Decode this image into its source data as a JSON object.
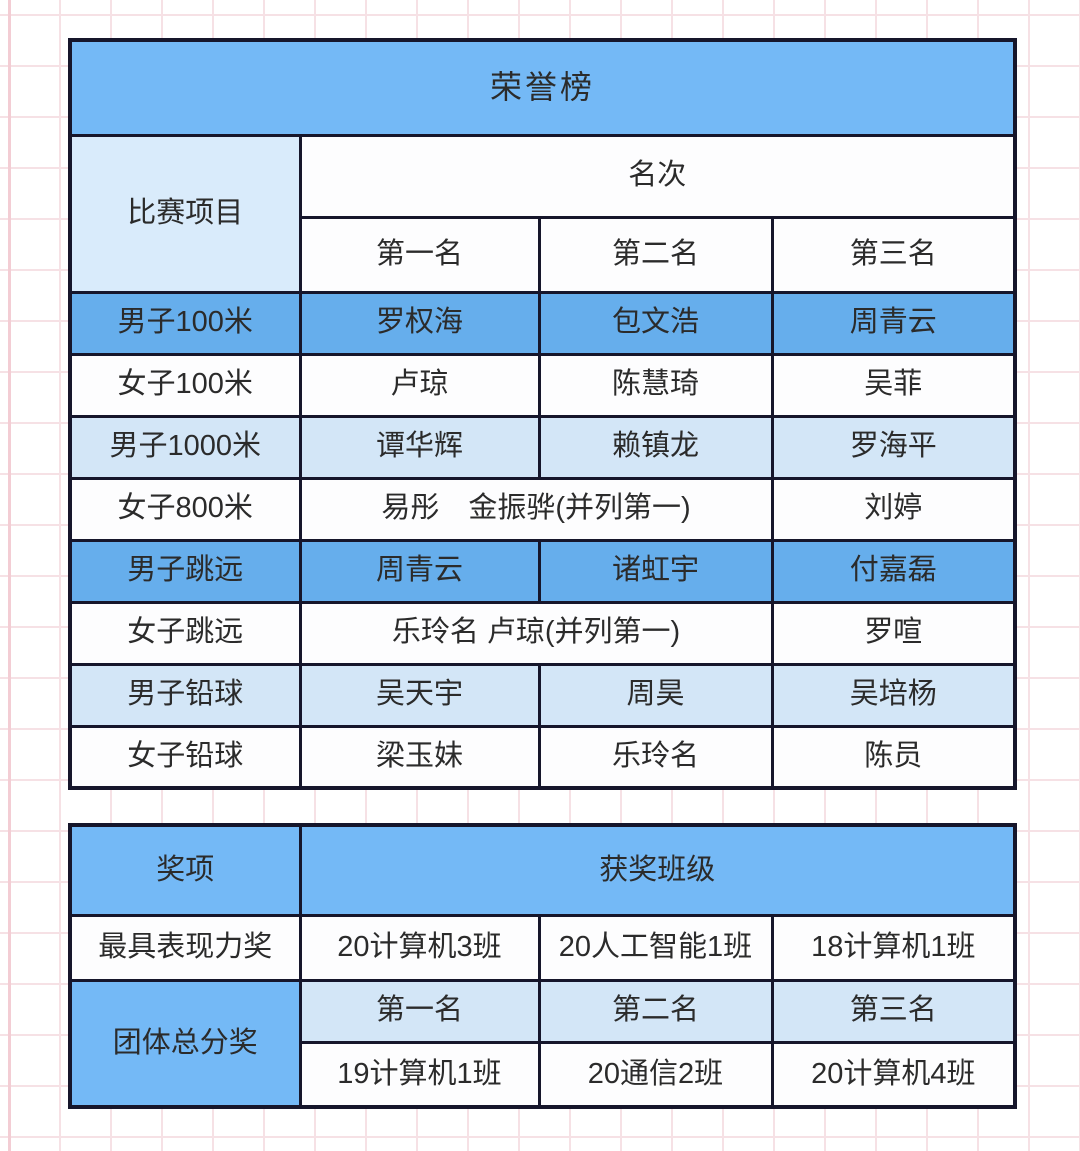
{
  "colors": {
    "header_blue": "#74b9f6",
    "row_blue": "#66aeec",
    "row_light": "#d3e6f7",
    "label_light": "#d9ebfb",
    "row_white": "#fdfdfe",
    "border": "#16162b",
    "text": "#2b2b2b",
    "grid_line": "#f6e1e5",
    "accent_line": "#f3cdd4"
  },
  "honor_table": {
    "title": "荣誉榜",
    "rows": [
      [
        {
          "text": "荣誉榜",
          "colspan": 4,
          "bg": "header",
          "name": "honor-table-title"
        }
      ],
      [
        {
          "text": "比赛项目",
          "rowspan": 2,
          "bg": "lightlabel",
          "name": "event-column-header"
        },
        {
          "text": "名次",
          "colspan": 3,
          "bg": "white",
          "name": "rank-group-header"
        }
      ],
      [
        {
          "text": "第一名",
          "bg": "white",
          "name": "first-place-header"
        },
        {
          "text": "第二名",
          "bg": "white",
          "name": "second-place-header"
        },
        {
          "text": "第三名",
          "bg": "white",
          "name": "third-place-header"
        }
      ],
      [
        {
          "text": "男子100米",
          "bg": "blue",
          "name": "event-label"
        },
        {
          "text": "罗权海",
          "bg": "blue",
          "name": "winner-name"
        },
        {
          "text": "包文浩",
          "bg": "blue",
          "name": "winner-name"
        },
        {
          "text": "周青云",
          "bg": "blue",
          "name": "winner-name"
        }
      ],
      [
        {
          "text": "女子100米",
          "bg": "white",
          "name": "event-label"
        },
        {
          "text": "卢琼",
          "bg": "white",
          "name": "winner-name"
        },
        {
          "text": "陈慧琦",
          "bg": "white",
          "name": "winner-name"
        },
        {
          "text": "吴菲",
          "bg": "white",
          "name": "winner-name"
        }
      ],
      [
        {
          "text": "男子1000米",
          "bg": "light",
          "name": "event-label"
        },
        {
          "text": "谭华辉",
          "bg": "light",
          "name": "winner-name"
        },
        {
          "text": "赖镇龙",
          "bg": "light",
          "name": "winner-name"
        },
        {
          "text": "罗海平",
          "bg": "light",
          "name": "winner-name"
        }
      ],
      [
        {
          "text": "女子800米",
          "bg": "white",
          "name": "event-label"
        },
        {
          "text": "易彤　金振骅(并列第一)",
          "colspan": 2,
          "bg": "white",
          "name": "winner-name"
        },
        {
          "text": "刘婷",
          "bg": "white",
          "name": "winner-name"
        }
      ],
      [
        {
          "text": "男子跳远",
          "bg": "blue",
          "name": "event-label"
        },
        {
          "text": "周青云",
          "bg": "blue",
          "name": "winner-name"
        },
        {
          "text": "诸虹宇",
          "bg": "blue",
          "name": "winner-name"
        },
        {
          "text": "付嘉磊",
          "bg": "blue",
          "name": "winner-name"
        }
      ],
      [
        {
          "text": "女子跳远",
          "bg": "white",
          "name": "event-label"
        },
        {
          "text": "乐玲名 卢琼(并列第一)",
          "colspan": 2,
          "bg": "white",
          "name": "winner-name"
        },
        {
          "text": "罗喧",
          "bg": "white",
          "name": "winner-name"
        }
      ],
      [
        {
          "text": "男子铅球",
          "bg": "light",
          "name": "event-label"
        },
        {
          "text": "吴天宇",
          "bg": "light",
          "name": "winner-name"
        },
        {
          "text": "周昊",
          "bg": "light",
          "name": "winner-name"
        },
        {
          "text": "吴培杨",
          "bg": "light",
          "name": "winner-name"
        }
      ],
      [
        {
          "text": "女子铅球",
          "bg": "white",
          "name": "event-label"
        },
        {
          "text": "梁玉妹",
          "bg": "white",
          "name": "winner-name"
        },
        {
          "text": "乐玲名",
          "bg": "white",
          "name": "winner-name"
        },
        {
          "text": "陈员",
          "bg": "white",
          "name": "winner-name"
        }
      ]
    ]
  },
  "award_table": {
    "rows": [
      [
        {
          "text": "奖项",
          "bg": "header",
          "name": "award-column-header"
        },
        {
          "text": "获奖班级",
          "colspan": 3,
          "bg": "header",
          "name": "winning-class-header"
        }
      ],
      [
        {
          "text": "最具表现力奖",
          "bg": "white",
          "name": "award-label"
        },
        {
          "text": "20计算机3班",
          "bg": "white",
          "name": "class-name"
        },
        {
          "text": "20人工智能1班",
          "bg": "white",
          "name": "class-name"
        },
        {
          "text": "18计算机1班",
          "bg": "white",
          "name": "class-name"
        }
      ],
      [
        {
          "text": "团体总分奖",
          "rowspan": 2,
          "bg": "header",
          "name": "award-label"
        },
        {
          "text": "第一名",
          "bg": "light",
          "name": "first-place-header"
        },
        {
          "text": "第二名",
          "bg": "light",
          "name": "second-place-header"
        },
        {
          "text": "第三名",
          "bg": "light",
          "name": "third-place-header"
        }
      ],
      [
        {
          "text": "19计算机1班",
          "bg": "white",
          "name": "class-name"
        },
        {
          "text": "20通信2班",
          "bg": "white",
          "name": "class-name"
        },
        {
          "text": "20计算机4班",
          "bg": "white",
          "name": "class-name"
        }
      ]
    ]
  }
}
